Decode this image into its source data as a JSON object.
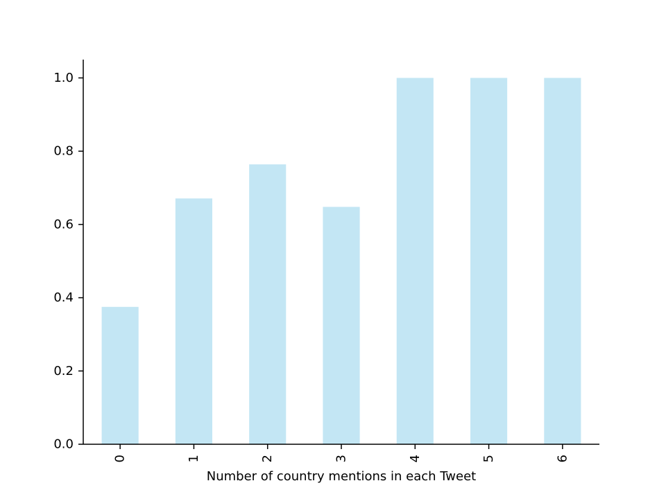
{
  "chart_data": {
    "type": "bar",
    "title": "",
    "xlabel": "Number of country mentions in each Tweet",
    "ylabel": "",
    "categories": [
      "0",
      "1",
      "2",
      "3",
      "4",
      "5",
      "6"
    ],
    "values": [
      0.375,
      0.671,
      0.764,
      0.648,
      1.0,
      1.0,
      1.0
    ],
    "ylim": [
      0,
      1.05
    ],
    "yticks": [
      "0.0",
      "0.2",
      "0.4",
      "0.6",
      "0.8",
      "1.0"
    ],
    "x_tick_rotation": "vertical",
    "grid": false,
    "legend": "none",
    "bar_color": "#c3e6f4",
    "axis_color": "#000000"
  }
}
